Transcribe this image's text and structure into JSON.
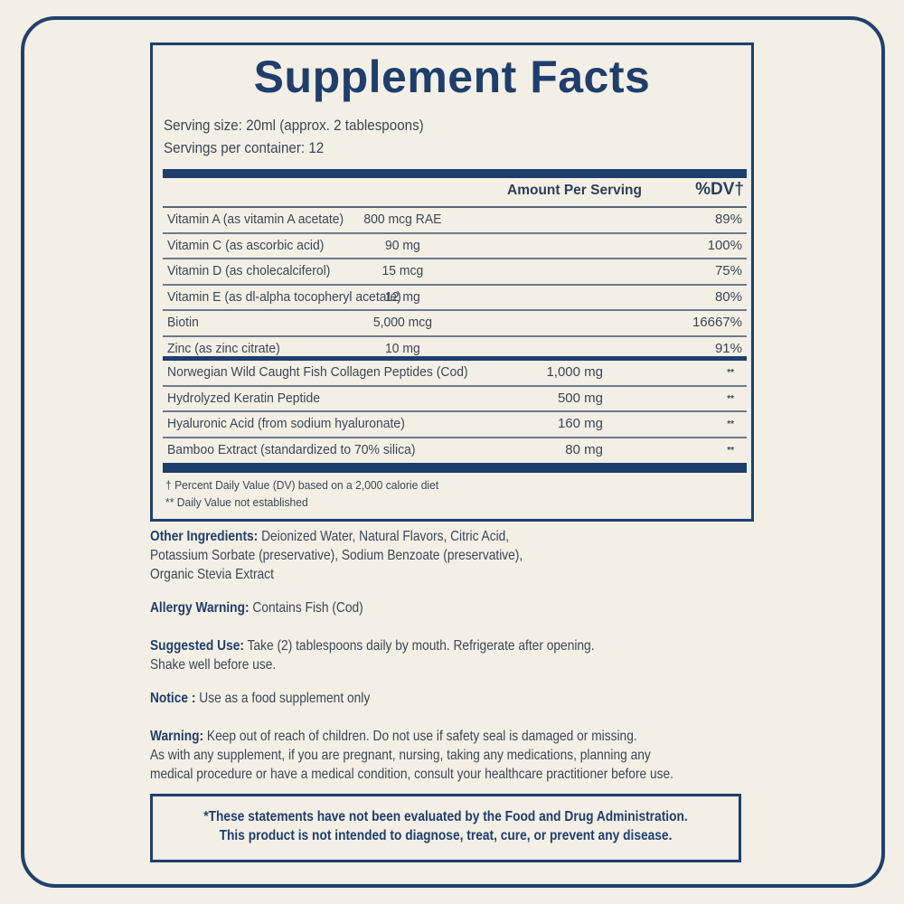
{
  "colors": {
    "navy": "#1d3f6e",
    "text": "#3a4658",
    "background": "#f4efe4"
  },
  "facts": {
    "title": "Supplement Facts",
    "serving_size": "Serving size: 20ml (approx. 2 tablespoons)",
    "servings_per_container": "Servings per container: 12",
    "header_amount": "Amount Per Serving",
    "header_dv": "%DV†",
    "vitamins": [
      {
        "name": "Vitamin A (as vitamin A acetate)",
        "amount": "800 mcg RAE",
        "dv": "89%"
      },
      {
        "name": "Vitamin C (as ascorbic acid)",
        "amount": "90 mg",
        "dv": "100%"
      },
      {
        "name": "Vitamin D (as cholecalciferol)",
        "amount": "15 mcg",
        "dv": "75%"
      },
      {
        "name": "Vitamin E (as dl-alpha tocopheryl acetate)",
        "amount": "12 mg",
        "dv": "80%"
      },
      {
        "name": "Biotin",
        "amount": "5,000 mcg",
        "dv": "16667%"
      },
      {
        "name": "Zinc (as zinc citrate)",
        "amount": "10 mg",
        "dv": "91%"
      }
    ],
    "others": [
      {
        "name": "Norwegian Wild Caught Fish Collagen Peptides (Cod)",
        "amount": "1,000 mg",
        "dv": "**"
      },
      {
        "name": "Hydrolyzed Keratin Peptide",
        "amount": "500 mg",
        "dv": "**"
      },
      {
        "name": "Hyaluronic Acid (from sodium hyaluronate)",
        "amount": "160 mg",
        "dv": "**"
      },
      {
        "name": "Bamboo Extract (standardized to 70% silica)",
        "amount": "80 mg",
        "dv": "**"
      }
    ],
    "footnote_dv": "† Percent Daily Value (DV) based on a 2,000 calorie diet",
    "footnote_not_established": "** Daily Value not established"
  },
  "info": {
    "other_ingredients_label": "Other Ingredients:",
    "other_ingredients_line1": " Deionized Water, Natural Flavors, Citric Acid,",
    "other_ingredients_line2": "Potassium Sorbate (preservative), Sodium Benzoate (preservative),",
    "other_ingredients_line3": "Organic Stevia Extract",
    "allergy_label": "Allergy Warning:",
    "allergy_text": " Contains Fish (Cod)",
    "suggested_label": "Suggested Use:",
    "suggested_line1": " Take (2) tablespoons daily by mouth. Refrigerate after opening.",
    "suggested_line2": "Shake well before use.",
    "notice_label": "Notice :",
    "notice_text": " Use as a food supplement only",
    "warning_label": "Warning:",
    "warning_line1": " Keep out of reach of children. Do not use if safety seal is damaged or missing.",
    "warning_line2": "As with any supplement, if you are pregnant, nursing, taking any medications, planning any",
    "warning_line3": "medical procedure or have a medical condition, consult your healthcare practitioner before use."
  },
  "disclaimer": {
    "line1": "*These statements have not been evaluated by the Food and Drug Administration.",
    "line2": "This product is not intended to diagnose, treat, cure, or prevent any disease."
  }
}
